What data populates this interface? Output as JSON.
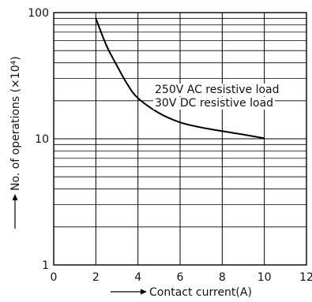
{
  "chart_data": {
    "type": "line",
    "x_scale": "linear",
    "y_scale": "log",
    "xlim": [
      0,
      12
    ],
    "ylim": [
      1,
      100
    ],
    "x_ticks": [
      0,
      2,
      4,
      6,
      8,
      10,
      12
    ],
    "x_tick_labels": [
      "0",
      "2",
      "4",
      "6",
      "8",
      "10",
      "12"
    ],
    "y_ticks": [
      1,
      10,
      100
    ],
    "y_tick_labels": [
      "1",
      "10",
      "100"
    ],
    "xlabel": "Contact current(A)",
    "ylabel": "No. of operations (×10⁴)",
    "grid": true,
    "series": [
      {
        "name": "",
        "x": [
          2,
          2.5,
          3,
          3.5,
          4,
          5,
          6,
          7,
          8,
          9,
          10
        ],
        "y": [
          90,
          55,
          38,
          27,
          21,
          16,
          13.5,
          12.3,
          11.5,
          10.8,
          10.1
        ]
      }
    ],
    "annotations": [
      {
        "text": "250V AC resistive load"
      },
      {
        "text": "30V DC resistive load"
      }
    ]
  }
}
